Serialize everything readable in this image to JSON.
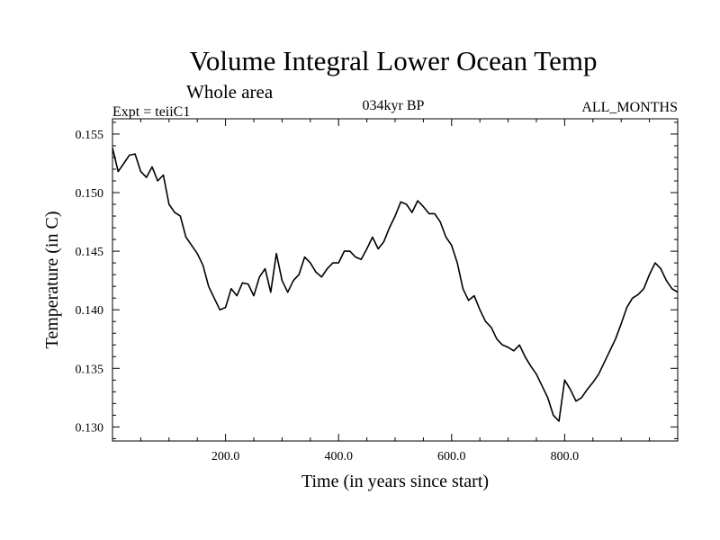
{
  "chart_data": {
    "type": "line",
    "title": "Volume Integral Lower Ocean Temp",
    "subtitle": "Whole area",
    "experiment_label": "Expt = teiiC1",
    "period_label": "034kyr BP",
    "months_label": "ALL_MONTHS",
    "xlabel": "Time (in years since start)",
    "ylabel": "Temperature (in C)",
    "xlim": [
      0,
      1000
    ],
    "ylim": [
      0.1288,
      0.1563
    ],
    "x_ticks": [
      200,
      400,
      600,
      800
    ],
    "x_tick_labels": [
      "200.0",
      "400.0",
      "600.0",
      "800.0"
    ],
    "y_ticks": [
      0.13,
      0.135,
      0.14,
      0.145,
      0.15,
      0.155
    ],
    "y_tick_labels": [
      "0.130",
      "0.135",
      "0.140",
      "0.145",
      "0.150",
      "0.155"
    ],
    "grid": false,
    "series": [
      {
        "color": "#000000",
        "x": [
          0,
          10,
          20,
          30,
          40,
          50,
          60,
          70,
          80,
          90,
          100,
          110,
          120,
          130,
          140,
          150,
          160,
          170,
          180,
          190,
          200,
          210,
          220,
          230,
          240,
          250,
          260,
          270,
          280,
          290,
          300,
          310,
          320,
          330,
          340,
          350,
          360,
          370,
          380,
          390,
          400,
          410,
          420,
          430,
          440,
          450,
          460,
          470,
          480,
          490,
          500,
          510,
          520,
          530,
          540,
          550,
          560,
          570,
          580,
          590,
          600,
          610,
          620,
          630,
          640,
          650,
          660,
          670,
          680,
          690,
          700,
          710,
          720,
          730,
          740,
          750,
          760,
          770,
          780,
          790,
          800,
          810,
          820,
          830,
          840,
          850,
          860,
          870,
          880,
          890,
          900,
          910,
          920,
          930,
          940,
          950,
          960,
          970,
          980,
          990,
          1000
        ],
        "y": [
          0.1538,
          0.1518,
          0.1525,
          0.1532,
          0.1533,
          0.1518,
          0.1513,
          0.1522,
          0.151,
          0.1515,
          0.149,
          0.1483,
          0.148,
          0.1462,
          0.1455,
          0.1448,
          0.1438,
          0.142,
          0.141,
          0.14,
          0.1402,
          0.1418,
          0.1412,
          0.1423,
          0.1422,
          0.1412,
          0.1428,
          0.1435,
          0.1415,
          0.1448,
          0.1425,
          0.1415,
          0.1425,
          0.143,
          0.1445,
          0.144,
          0.1432,
          0.1428,
          0.1435,
          0.144,
          0.144,
          0.145,
          0.145,
          0.1445,
          0.1443,
          0.1452,
          0.1462,
          0.1452,
          0.1458,
          0.147,
          0.148,
          0.1492,
          0.149,
          0.1483,
          0.1493,
          0.1488,
          0.1482,
          0.1482,
          0.1475,
          0.1462,
          0.1455,
          0.144,
          0.1418,
          0.1408,
          0.1412,
          0.14,
          0.139,
          0.1385,
          0.1375,
          0.137,
          0.1368,
          0.1365,
          0.137,
          0.136,
          0.1352,
          0.1345,
          0.1335,
          0.1325,
          0.131,
          0.1305,
          0.134,
          0.1332,
          0.1322,
          0.1325,
          0.1332,
          0.1338,
          0.1345,
          0.1355,
          0.1365,
          0.1375,
          0.1388,
          0.1402,
          0.141,
          0.1413,
          0.1418,
          0.143,
          0.144,
          0.1435,
          0.1425,
          0.1418,
          0.1415
        ]
      }
    ]
  }
}
